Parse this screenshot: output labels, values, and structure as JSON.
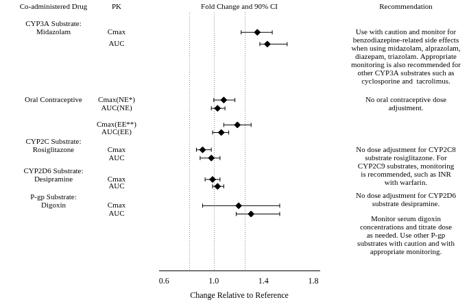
{
  "chart_data": {
    "type": "forest",
    "column_headers": [
      "Co-administered Drug",
      "PK",
      "Fold Change and 90% CI",
      "Recommendation"
    ],
    "x_label": "Change Relative to Reference",
    "xlim": [
      0.56,
      1.85
    ],
    "xticks": [
      0.6,
      {
        "value": 1,
        "label": "1.0"
      },
      1.4,
      1.8
    ],
    "reference_lines": [
      0.8,
      1,
      1.25
    ],
    "grid": false,
    "color": "#000000",
    "marker": "diamond",
    "groups": [
      {
        "drug": [
          "CYP3A Substrate:",
          "Midazolam"
        ],
        "rows": [
          {
            "pk": "Cmax",
            "value": 1.35,
            "ci": [
              1.22,
              1.47
            ]
          },
          {
            "pk": "AUC",
            "value": 1.43,
            "ci": [
              1.37,
              1.59
            ]
          }
        ],
        "recommendation": [
          "Use with caution and monitor for",
          "benzodiazepine-related side effects",
          "when using midazolam, alprazolam,",
          "diazepam, triazolam. Appropriate",
          "monitoring is also recommended for",
          "other CYP3A substrates such as",
          "cyclosporine and  tacrolimus."
        ]
      },
      {
        "drug": [
          "Oral Contraceptive"
        ],
        "rows": [
          {
            "pk": "Cmax(NE*)",
            "value": 1.08,
            "ci": [
              1.0,
              1.17
            ]
          },
          {
            "pk": "AUC(NE)",
            "value": 1.03,
            "ci": [
              0.98,
              1.09
            ]
          },
          {
            "pk": "Cmax(EE**)",
            "value": 1.19,
            "ci": [
              1.08,
              1.3
            ]
          },
          {
            "pk": "AUC(EE)",
            "value": 1.06,
            "ci": [
              0.99,
              1.12
            ]
          }
        ],
        "recommendation": [
          "No oral contraceptive dose",
          "adjustment."
        ]
      },
      {
        "drug": [
          "CYP2C Substrate:",
          "Rosiglitazone"
        ],
        "rows": [
          {
            "pk": "Cmax",
            "value": 0.91,
            "ci": [
              0.86,
              0.98
            ]
          },
          {
            "pk": "AUC",
            "value": 0.98,
            "ci": [
              0.89,
              1.05
            ]
          }
        ],
        "recommendation": [
          "No dose adjustment for CYP2C8",
          "substrate rosiglitazone. For",
          "CYP2C9 substrates, monitoring",
          "is recommended, such as INR",
          "with warfarin."
        ]
      },
      {
        "drug": [
          "CYP2D6 Substrate:",
          "Desipramine"
        ],
        "rows": [
          {
            "pk": "Cmax",
            "value": 0.99,
            "ci": [
              0.93,
              1.05
            ]
          },
          {
            "pk": "AUC",
            "value": 1.03,
            "ci": [
              0.99,
              1.08
            ]
          }
        ],
        "recommendation": [
          "No dose adjustment for CYP2D6",
          "substrate desipramine."
        ]
      },
      {
        "drug": [
          "P-gp Substrate:",
          "Digoxin"
        ],
        "rows": [
          {
            "pk": "Cmax",
            "value": 1.2,
            "ci": [
              0.91,
              1.53
            ]
          },
          {
            "pk": "AUC",
            "value": 1.3,
            "ci": [
              1.18,
              1.53
            ]
          }
        ],
        "recommendation": [
          "Monitor serum digoxin",
          "concentrations and titrate dose",
          "as needed. Use other P-gp",
          "substrates with caution and with",
          "appropriate monitoring."
        ]
      }
    ]
  }
}
